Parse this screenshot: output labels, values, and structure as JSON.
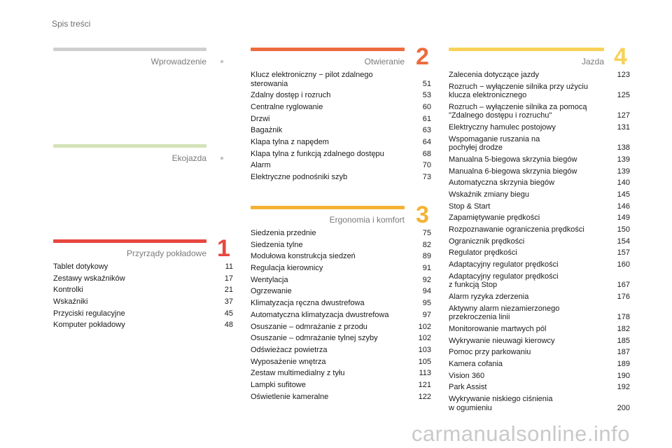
{
  "page_title": "Spis treści",
  "watermark": "carmanualsonline.info",
  "colors": {
    "wprowadzenie": "#cfcfcf",
    "ekojazda": "#d5e3b8",
    "przyrzady": "#e8473e",
    "otwieranie": "#ec6b3c",
    "ergonomia": "#f4b234",
    "jazda": "#f7d25a"
  },
  "sections": {
    "wprowadzenie": {
      "title": "Wprowadzenie"
    },
    "ekojazda": {
      "title": "Ekojazda"
    },
    "przyrzady": {
      "title": "Przyrządy pokładowe",
      "number": "1",
      "entries": [
        {
          "t": "Tablet dotykowy",
          "p": "11"
        },
        {
          "t": "Zestawy wskaźników",
          "p": "17"
        },
        {
          "t": "Kontrolki",
          "p": "21"
        },
        {
          "t": "Wskaźniki",
          "p": "37"
        },
        {
          "t": "Przyciski regulacyjne",
          "p": "45"
        },
        {
          "t": "Komputer pokładowy",
          "p": "48"
        }
      ]
    },
    "otwieranie": {
      "title": "Otwieranie",
      "number": "2",
      "entries": [
        {
          "t": "Klucz elektroniczny − pilot zdalnego\nsterowania",
          "p": "51"
        },
        {
          "t": "Zdalny dostęp i rozruch",
          "p": "53"
        },
        {
          "t": "Centralne ryglowanie",
          "p": "60"
        },
        {
          "t": "Drzwi",
          "p": "61"
        },
        {
          "t": "Bagażnik",
          "p": "63"
        },
        {
          "t": "Klapa tylna z napędem",
          "p": "64"
        },
        {
          "t": "Klapa tylna z funkcją zdalnego dostępu",
          "p": "68"
        },
        {
          "t": "Alarm",
          "p": "70"
        },
        {
          "t": "Elektryczne podnośniki szyb",
          "p": "73"
        }
      ]
    },
    "ergonomia": {
      "title": "Ergonomia i komfort",
      "number": "3",
      "entries": [
        {
          "t": "Siedzenia przednie",
          "p": "75"
        },
        {
          "t": "Siedzenia tylne",
          "p": "82"
        },
        {
          "t": "Modułowa konstrukcja siedzeń",
          "p": "89"
        },
        {
          "t": "Regulacja kierownicy",
          "p": "91"
        },
        {
          "t": "Wentylacja",
          "p": "92"
        },
        {
          "t": "Ogrzewanie",
          "p": "94"
        },
        {
          "t": "Klimatyzacja ręczna dwustrefowa",
          "p": "95"
        },
        {
          "t": "Automatyczna klimatyzacja dwustrefowa",
          "p": "97"
        },
        {
          "t": "Osuszanie – odmrażanie z przodu",
          "p": "102"
        },
        {
          "t": "Osuszanie – odmrażanie tylnej szyby",
          "p": "102"
        },
        {
          "t": "Odświeżacz powietrza",
          "p": "103"
        },
        {
          "t": "Wyposażenie wnętrza",
          "p": "105"
        },
        {
          "t": "Zestaw multimedialny z tyłu",
          "p": "113"
        },
        {
          "t": "Lampki sufitowe",
          "p": "121"
        },
        {
          "t": "Oświetlenie kameralne",
          "p": "122"
        }
      ]
    },
    "jazda": {
      "title": "Jazda",
      "number": "4",
      "entries": [
        {
          "t": "Zalecenia dotyczące jazdy",
          "p": "123"
        },
        {
          "t": "Rozruch − wyłączenie silnika przy użyciu\nklucza elektronicznego",
          "p": "125"
        },
        {
          "t": "Rozruch – wyłączenie silnika za pomocą\n\"Zdalnego dostępu i rozruchu\"",
          "p": "127"
        },
        {
          "t": "Elektryczny hamulec postojowy",
          "p": "131"
        },
        {
          "t": "Wspomaganie ruszania na\npochyłej drodze",
          "p": "138"
        },
        {
          "t": "Manualna 5-biegowa skrzynia biegów",
          "p": "139"
        },
        {
          "t": "Manualna 6-biegowa skrzynia biegów",
          "p": "139"
        },
        {
          "t": "Automatyczna skrzynia biegów",
          "p": "140"
        },
        {
          "t": "Wskaźnik zmiany biegu",
          "p": "145"
        },
        {
          "t": "Stop & Start",
          "p": "146"
        },
        {
          "t": "Zapamiętywanie prędkości",
          "p": "149"
        },
        {
          "t": "Rozpoznawanie ograniczenia prędkości",
          "p": "150"
        },
        {
          "t": "Ogranicznik prędkości",
          "p": "154"
        },
        {
          "t": "Regulator prędkości",
          "p": "157"
        },
        {
          "t": "Adaptacyjny regulator prędkości",
          "p": "160"
        },
        {
          "t": "Adaptacyjny regulator prędkości\nz funkcją Stop",
          "p": "167"
        },
        {
          "t": "Alarm ryzyka zderzenia",
          "p": "176"
        },
        {
          "t": "Aktywny alarm niezamierzonego\nprzekroczenia linii",
          "p": "178"
        },
        {
          "t": "Monitorowanie martwych pól",
          "p": "182"
        },
        {
          "t": "Wykrywanie nieuwagi kierowcy",
          "p": "185"
        },
        {
          "t": "Pomoc przy parkowaniu",
          "p": "187"
        },
        {
          "t": "Kamera cofania",
          "p": "189"
        },
        {
          "t": "Vision 360",
          "p": "190"
        },
        {
          "t": "Park Assist",
          "p": "192"
        },
        {
          "t": "Wykrywanie niskiego ciśnienia\nw ogumieniu",
          "p": "200"
        }
      ]
    }
  }
}
